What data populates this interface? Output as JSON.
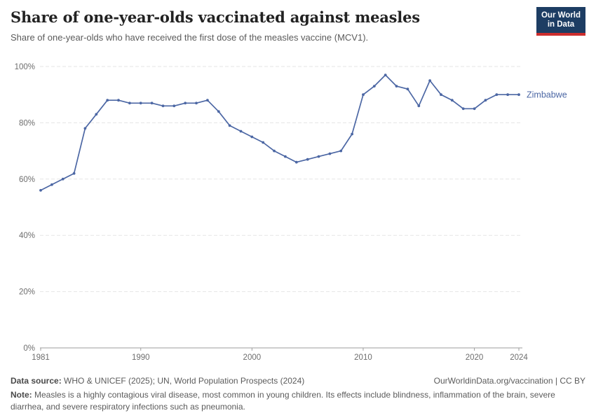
{
  "header": {
    "title": "Share of one-year-olds vaccinated against measles",
    "subtitle": "Share of one-year-olds who have received the first dose of the measles vaccine (MCV1)."
  },
  "logo": {
    "line1": "Our World",
    "line2": "in Data",
    "bg_color": "#1d3d63",
    "accent_color": "#cc2d2d"
  },
  "chart_data": {
    "type": "line",
    "title": "Share of one-year-olds vaccinated against measles",
    "xlabel": "",
    "ylabel": "",
    "xlim": [
      1981,
      2024
    ],
    "ylim": [
      0,
      100
    ],
    "grid": "horizontal-dashed",
    "legend_position": "end-of-line-label",
    "x_ticks": [
      1981,
      1990,
      2000,
      2010,
      2020,
      2024
    ],
    "y_ticks": [
      0,
      20,
      40,
      60,
      80,
      100
    ],
    "y_tick_labels": [
      "0%",
      "20%",
      "40%",
      "60%",
      "80%",
      "100%"
    ],
    "series": [
      {
        "name": "Zimbabwe",
        "color": "#4c67a4",
        "x": [
          1981,
          1982,
          1983,
          1984,
          1985,
          1986,
          1987,
          1988,
          1989,
          1990,
          1991,
          1992,
          1993,
          1994,
          1995,
          1996,
          1997,
          1998,
          1999,
          2000,
          2001,
          2002,
          2003,
          2004,
          2005,
          2006,
          2007,
          2008,
          2009,
          2010,
          2011,
          2012,
          2013,
          2014,
          2015,
          2016,
          2017,
          2018,
          2019,
          2020,
          2021,
          2022,
          2023,
          2024
        ],
        "values": [
          56,
          58,
          60,
          62,
          78,
          83,
          88,
          88,
          87,
          87,
          87,
          86,
          86,
          87,
          87,
          88,
          84,
          79,
          77,
          75,
          73,
          70,
          68,
          66,
          67,
          68,
          69,
          70,
          76,
          90,
          93,
          97,
          93,
          92,
          86,
          95,
          90,
          88,
          85,
          85,
          88,
          90,
          90,
          90
        ]
      }
    ],
    "colors": {
      "grid": "#e5e5e5",
      "axis": "#9e9e9e",
      "tick_text": "#6e6e6e"
    }
  },
  "footer": {
    "source_label": "Data source:",
    "source_text": " WHO & UNICEF (2025); UN, World Population Prospects (2024)",
    "link_text": "OurWorldinData.org/vaccination | CC BY",
    "note_label": "Note:",
    "note_text": " Measles is a highly contagious viral disease, most common in young children. Its effects include blindness, inflammation of the brain, severe diarrhea, and severe respiratory infections such as pneumonia."
  }
}
